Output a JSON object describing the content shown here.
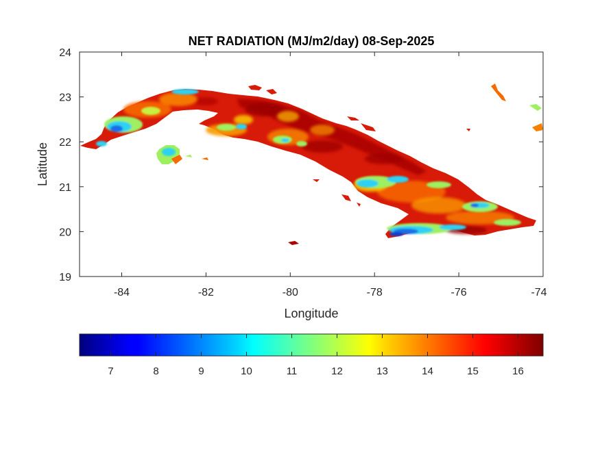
{
  "chart_data": {
    "type": "heatmap",
    "title": "NET RADIATION (MJ/m2/day) 08-Sep-2025",
    "xlabel": "Longitude",
    "ylabel": "Latitude",
    "xlim": [
      -85,
      -74
    ],
    "ylim": [
      19,
      24
    ],
    "xticks": [
      -84,
      -82,
      -80,
      -78,
      -76,
      -74
    ],
    "yticks": [
      19,
      20,
      21,
      22,
      23,
      24
    ],
    "grid": false,
    "colormap": "jet",
    "colorbar": {
      "orientation": "horizontal",
      "placement": "bottom",
      "range": [
        6.2,
        16.5
      ],
      "ticks": [
        7,
        8,
        9,
        10,
        11,
        12,
        13,
        14,
        15,
        16
      ]
    },
    "region_shown": "Cuba",
    "value_summary": {
      "typical_range": [
        13,
        16
      ],
      "low_value_areas": [
        {
          "lon": -84.0,
          "lat": 22.4,
          "value": 9
        },
        {
          "lon": -83.0,
          "lat": 21.8,
          "value": 10
        },
        {
          "lon": -77.0,
          "lat": 20.0,
          "value": 8
        },
        {
          "lon": -75.8,
          "lat": 20.5,
          "value": 9
        },
        {
          "lon": -77.5,
          "lat": 21.0,
          "value": 10
        }
      ]
    }
  },
  "colors": {
    "map_main": "#d81a08",
    "map_dark": "#980000",
    "map_mid": "#f76a00",
    "map_low": "#fbd500",
    "map_green": "#9ef060",
    "map_cyan": "#2fd1f2",
    "map_blue": "#1d6ee8"
  }
}
